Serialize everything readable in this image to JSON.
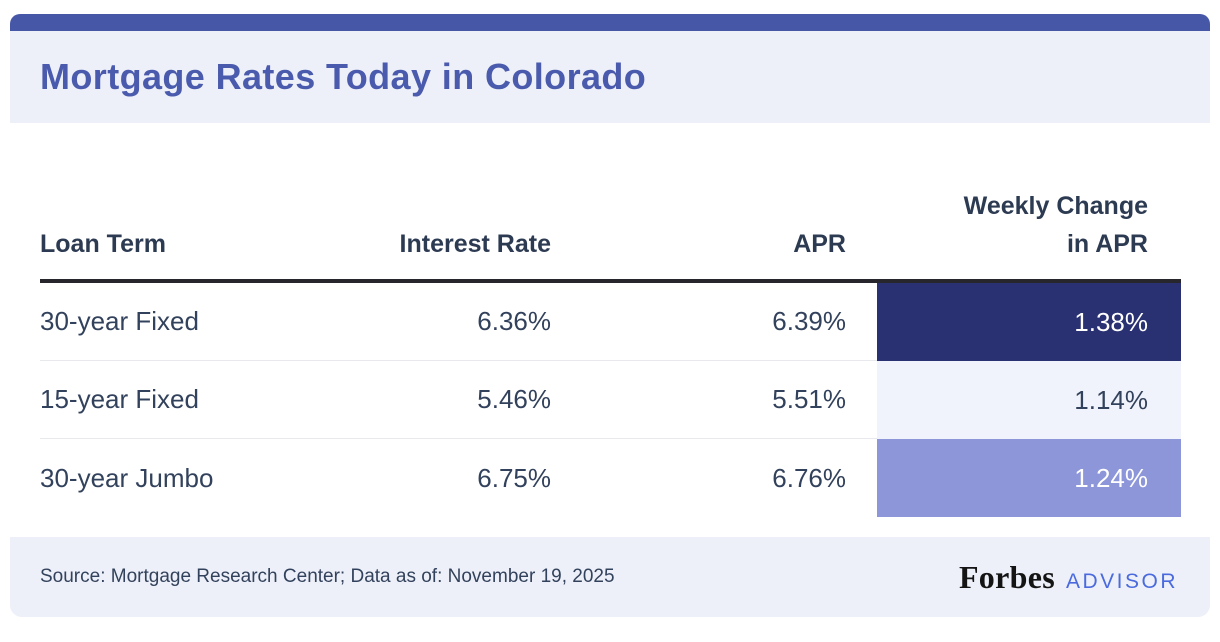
{
  "theme": {
    "topbar_color": "#4757a8",
    "header_footer_bg": "#edf0f8",
    "title_color": "#4a5aad",
    "text_color": "#33425c",
    "header_border_color": "#27262c",
    "advisor_blue": "#4a6ade"
  },
  "header": {
    "title": "Mortgage Rates Today in Colorado"
  },
  "table": {
    "headers": {
      "loan_term": "Loan Term",
      "interest_rate": "Interest Rate",
      "apr": "APR",
      "weekly_change_line1": "Weekly Change",
      "weekly_change_line2": "in APR"
    },
    "rows": [
      {
        "term": "30-year Fixed",
        "interest_rate": "6.36%",
        "apr": "6.39%",
        "weekly_change": "1.38%",
        "weekly_bg": "#293173",
        "weekly_text_color": "#ffffff"
      },
      {
        "term": "15-year Fixed",
        "interest_rate": "5.46%",
        "apr": "5.51%",
        "weekly_change": "1.14%",
        "weekly_bg": "#f0f3fb",
        "weekly_text_color": "#33425c"
      },
      {
        "term": "30-year Jumbo",
        "interest_rate": "6.75%",
        "apr": "6.76%",
        "weekly_change": "1.24%",
        "weekly_bg": "#8c96d9",
        "weekly_text_color": "#ffffff"
      }
    ]
  },
  "footer": {
    "source_text": "Source: Mortgage Research Center; Data as of: November 19, 2025",
    "brand": {
      "name": "Forbes",
      "suffix": "ADVISOR"
    }
  },
  "chart_data": {
    "type": "table",
    "title": "Mortgage Rates Today in Colorado",
    "columns": [
      "Loan Term",
      "Interest Rate",
      "APR",
      "Weekly Change in APR"
    ],
    "rows": [
      [
        "30-year Fixed",
        "6.36%",
        "6.39%",
        "1.38%"
      ],
      [
        "15-year Fixed",
        "5.46%",
        "5.51%",
        "1.14%"
      ],
      [
        "30-year Jumbo",
        "6.75%",
        "6.76%",
        "1.24%"
      ]
    ],
    "highlighted_column": "Weekly Change in APR",
    "highlight_cell_colors": [
      "#293173",
      "#f0f3fb",
      "#8c96d9"
    ],
    "source": "Source: Mortgage Research Center; Data as of: November 19, 2025",
    "brand": "Forbes ADVISOR"
  }
}
